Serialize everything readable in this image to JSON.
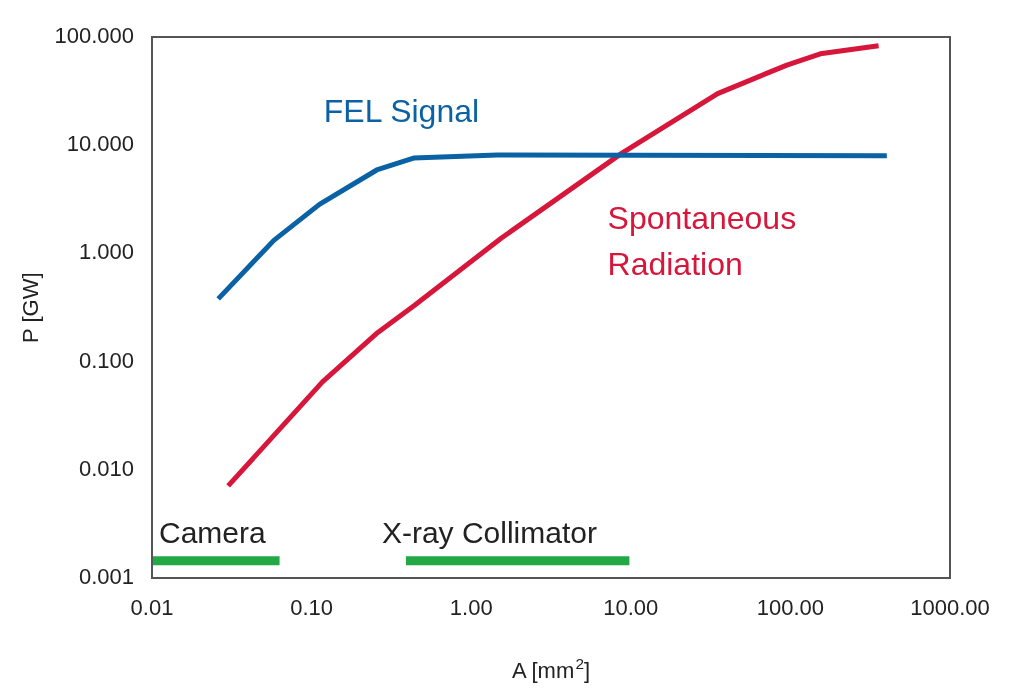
{
  "chart_data": {
    "type": "line",
    "xlabel": "A [mm$^{2}$]",
    "ylabel": "P [GW]",
    "log": "xy",
    "grid": false,
    "legend": false,
    "marker": "none",
    "line_style": "solid",
    "xlim": [
      0.01,
      1000
    ],
    "ylim": [
      0.001,
      100
    ],
    "xticks": [
      {
        "value": 0.01,
        "label": "0.01"
      },
      {
        "value": 0.1,
        "label": "0.10"
      },
      {
        "value": 1,
        "label": "1.00"
      },
      {
        "value": 10,
        "label": "10.00"
      },
      {
        "value": 100,
        "label": "100.00"
      },
      {
        "value": 1000,
        "label": "1000.00"
      }
    ],
    "yticks": [
      {
        "value": 0.001,
        "label": "0.001"
      },
      {
        "value": 0.01,
        "label": "0.010"
      },
      {
        "value": 0.1,
        "label": "0.100"
      },
      {
        "value": 1,
        "label": "1.000"
      },
      {
        "value": 10,
        "label": "10.000"
      },
      {
        "value": 100,
        "label": "100.000"
      }
    ],
    "series": [
      {
        "name": "FEL Signal",
        "color": "#0a62a4",
        "x": [
          0.026,
          0.058,
          0.112,
          0.256,
          0.435,
          1.46,
          402
        ],
        "values": [
          0.38,
          1.32,
          2.84,
          5.9,
          7.6,
          8.1,
          8.0
        ]
      },
      {
        "name": "Spontaneous Radiation",
        "color": "#d6163a",
        "x": [
          0.03,
          0.117,
          0.26,
          0.44,
          1.54,
          8.75,
          35,
          95,
          154,
          357
        ],
        "values": [
          0.0071,
          0.065,
          0.186,
          0.33,
          1.38,
          8.4,
          30,
          55,
          70,
          83
        ]
      },
      {
        "color": "#22a845",
        "x": [
          0.01,
          0.063
        ],
        "values": [
          0.00144,
          0.00144
        ]
      },
      {
        "color": "#22a845",
        "x": [
          0.39,
          9.8
        ],
        "values": [
          0.00144,
          0.00144
        ]
      }
    ],
    "annotations": [
      "Camera",
      "X-ray Collimator"
    ]
  }
}
